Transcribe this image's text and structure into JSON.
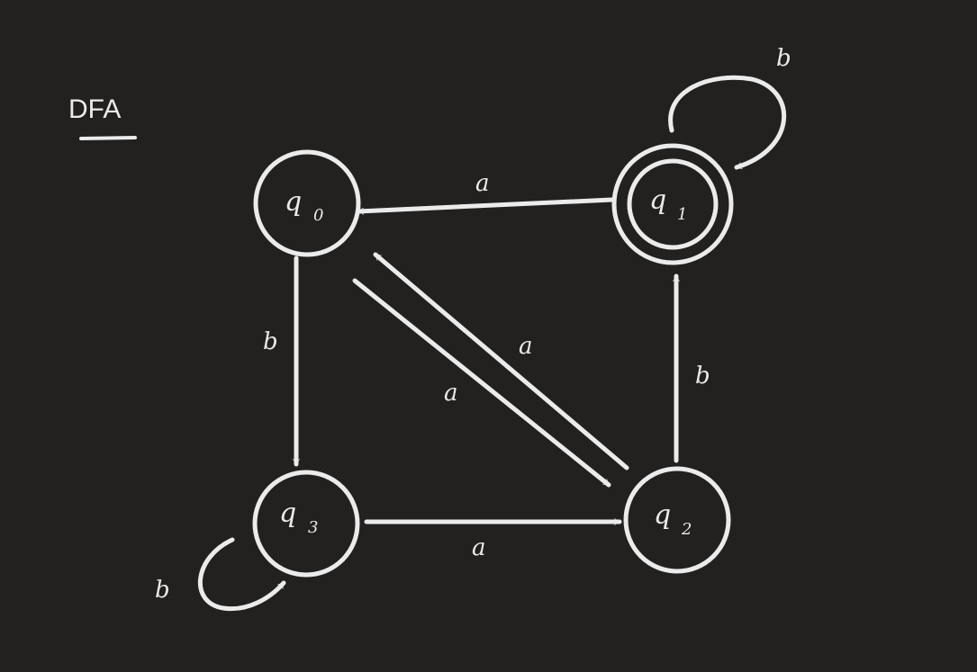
{
  "title": "DFA",
  "states": [
    {
      "id": "q0",
      "base": "q",
      "sub": "0",
      "accepting": false
    },
    {
      "id": "q1",
      "base": "q",
      "sub": "1",
      "accepting": true
    },
    {
      "id": "q2",
      "base": "q",
      "sub": "2",
      "accepting": false
    },
    {
      "id": "q3",
      "base": "q",
      "sub": "3",
      "accepting": false
    }
  ],
  "transitions": [
    {
      "from": "q1",
      "to": "q0",
      "label": "a"
    },
    {
      "from": "q1",
      "to": "q1",
      "label": "b"
    },
    {
      "from": "q0",
      "to": "q3",
      "label": "b"
    },
    {
      "from": "q0",
      "to": "q2",
      "label": "a"
    },
    {
      "from": "q2",
      "to": "q0",
      "label": "a"
    },
    {
      "from": "q2",
      "to": "q1",
      "label": "b"
    },
    {
      "from": "q3",
      "to": "q2",
      "label": "a"
    },
    {
      "from": "q3",
      "to": "q3",
      "label": "b"
    }
  ],
  "colors": {
    "background": "#222120",
    "ink": "#ebebeb"
  }
}
